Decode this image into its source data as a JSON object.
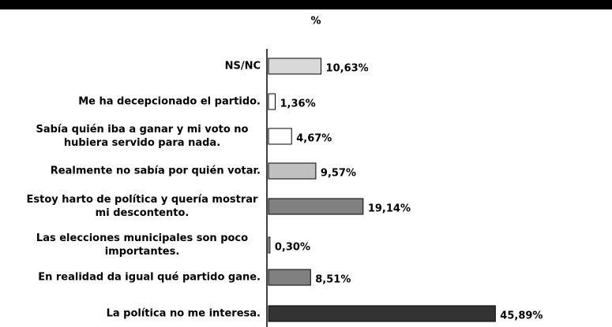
{
  "chart_data": {
    "type": "hbar",
    "title": "%",
    "categories": [
      "NS/NC",
      "Me ha decepcionado el partido.",
      "Sabía quién iba a ganar y mi voto no hubiera servido para nada.",
      "Realmente no sabía por quién votar.",
      "Estoy harto de política y quería mostrar mi descontento.",
      "Las elecciones municipales son poco importantes.",
      "En realidad da igual qué partido gane.",
      "La política no me interesa."
    ],
    "values": [
      10.63,
      1.36,
      4.67,
      9.57,
      19.14,
      0.3,
      8.51,
      45.89
    ],
    "value_labels": [
      "10,63%",
      "1,36%",
      "4,67%",
      "9,57%",
      "19,14%",
      "0,30%",
      "8,51%",
      "45,89%"
    ],
    "colors": [
      "#d9d9d9",
      "#ffffff",
      "#ffffff",
      "#c0c0c0",
      "#808080",
      "#ffffff",
      "#808080",
      "#333333"
    ],
    "xlim": [
      0,
      46
    ]
  }
}
